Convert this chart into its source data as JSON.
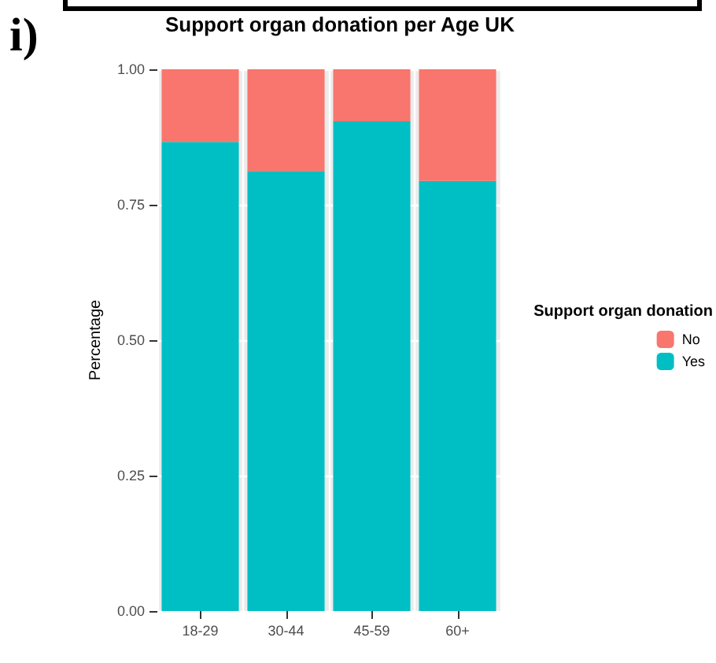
{
  "chart_data": {
    "type": "bar",
    "title": "Support organ donation per Age UK",
    "ylabel": "Percentage",
    "legend_title": "Support organ donation",
    "annotations": [
      "i)"
    ],
    "categories": [
      "18-29",
      "30-44",
      "45-59",
      "60+"
    ],
    "series": [
      {
        "name": "Yes",
        "color": "#00bfc4",
        "values": [
          0.866,
          0.812,
          0.904,
          0.794
        ]
      },
      {
        "name": "No",
        "color": "#f8766d",
        "values": [
          0.134,
          0.188,
          0.096,
          0.206
        ]
      }
    ],
    "stacked": true,
    "ylim": [
      0,
      1
    ],
    "yticks": [
      {
        "value": 0,
        "label": "0.00"
      },
      {
        "value": 0.25,
        "label": "0.25"
      },
      {
        "value": 0.5,
        "label": "0.50"
      },
      {
        "value": 0.75,
        "label": "0.75"
      },
      {
        "value": 1,
        "label": "1.00"
      }
    ],
    "grid": true,
    "legend": "right"
  }
}
